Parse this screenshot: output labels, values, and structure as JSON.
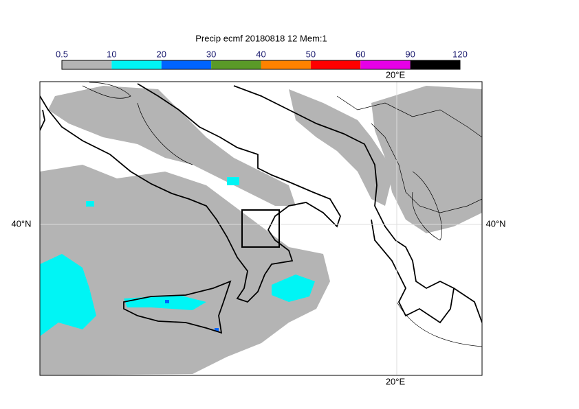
{
  "title": "Precip ecmf 20180818 12 Mem:1",
  "colorbar": {
    "labels": [
      "0.5",
      "10",
      "20",
      "30",
      "40",
      "50",
      "60",
      "90",
      "120"
    ],
    "colors": [
      "#b4b4b4",
      "#00f5f5",
      "#0064ff",
      "#5a9a28",
      "#ff8200",
      "#ff0000",
      "#e600e6",
      "#000000"
    ]
  },
  "graticule": {
    "lon_labels": [
      "20°E",
      "20°E"
    ],
    "lat_labels": [
      "40°N",
      "40°N"
    ]
  }
}
